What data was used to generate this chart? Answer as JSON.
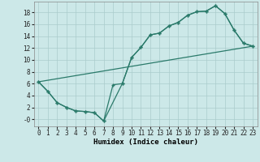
{
  "xlabel": "Humidex (Indice chaleur)",
  "bg_color": "#cce8e8",
  "grid_color": "#aacccc",
  "line_color": "#2a7a6a",
  "xlim": [
    -0.5,
    23.5
  ],
  "ylim": [
    -1.2,
    19.8
  ],
  "xticks": [
    0,
    1,
    2,
    3,
    4,
    5,
    6,
    7,
    8,
    9,
    10,
    11,
    12,
    13,
    14,
    15,
    16,
    17,
    18,
    19,
    20,
    21,
    22,
    23
  ],
  "yticks": [
    0,
    2,
    4,
    6,
    8,
    10,
    12,
    14,
    16,
    18
  ],
  "ytick_labels": [
    "-0",
    "2",
    "4",
    "6",
    "8",
    "10",
    "12",
    "14",
    "16",
    "18"
  ],
  "line1_x": [
    0,
    1,
    2,
    3,
    4,
    5,
    6,
    7,
    8,
    9,
    10,
    11,
    12,
    13,
    14,
    15,
    16,
    17,
    18,
    19,
    20,
    21,
    22,
    23
  ],
  "line1_y": [
    6.3,
    4.7,
    2.8,
    2.0,
    1.4,
    1.3,
    1.1,
    -0.3,
    5.8,
    6.0,
    10.4,
    12.1,
    14.2,
    14.5,
    15.7,
    16.3,
    17.5,
    18.1,
    18.2,
    19.1,
    17.8,
    15.0,
    12.8,
    12.3
  ],
  "line2_x": [
    0,
    1,
    2,
    3,
    4,
    5,
    6,
    7,
    9,
    10,
    11,
    12,
    13,
    14,
    15,
    16,
    17,
    18,
    19,
    20,
    21,
    22,
    23
  ],
  "line2_y": [
    6.3,
    4.7,
    2.8,
    2.0,
    1.4,
    1.3,
    1.1,
    -0.3,
    6.0,
    10.4,
    12.1,
    14.2,
    14.5,
    15.7,
    16.3,
    17.5,
    18.1,
    18.2,
    19.1,
    17.8,
    15.0,
    12.8,
    12.3
  ],
  "line3_x": [
    0,
    23
  ],
  "line3_y": [
    6.3,
    12.3
  ],
  "font_family": "monospace",
  "xlabel_fontsize": 6.5,
  "tick_fontsize": 5.5
}
